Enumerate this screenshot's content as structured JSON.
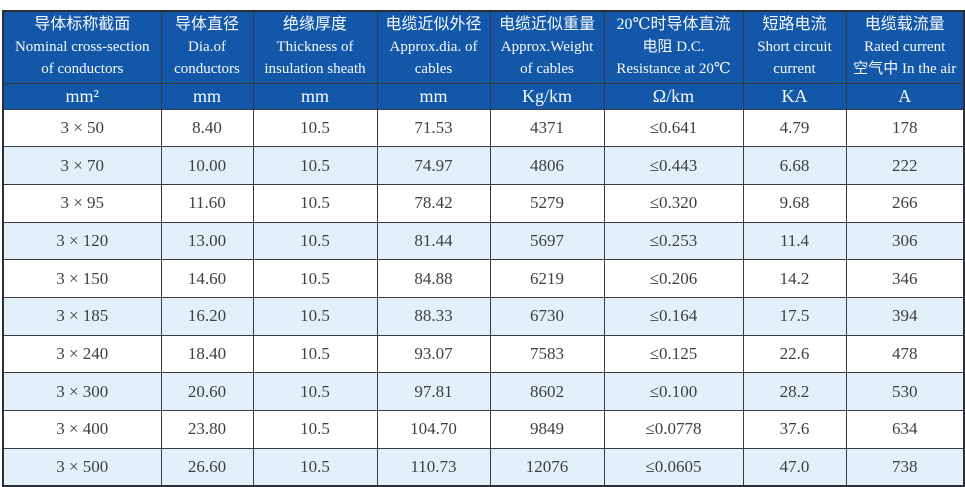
{
  "colors": {
    "header_bg": "#1357a9",
    "header_text": "#f6f9fd",
    "row_alt_bg": "#e2f0fa",
    "row_bg": "#ffffff",
    "border": "#3a3a44",
    "cell_text": "#3f3f3f"
  },
  "table": {
    "columns": [
      {
        "lines": [
          "导体标称截面",
          "Nominal cross-section",
          "of conductors"
        ],
        "unit": "mm²"
      },
      {
        "lines": [
          "导体直径",
          "Dia.of",
          "conductors"
        ],
        "unit": "mm"
      },
      {
        "lines": [
          "绝缘厚度",
          "Thickness of",
          "insulation sheath"
        ],
        "unit": "mm"
      },
      {
        "lines": [
          "电缆近似外径",
          "Approx.dia. of",
          "cables"
        ],
        "unit": "mm"
      },
      {
        "lines": [
          "电缆近似重量",
          "Approx.Weight",
          "of cables"
        ],
        "unit": "Kg/km"
      },
      {
        "lines": [
          "20℃时导体直流",
          "电阻 D.C.",
          "Resistance at 20℃"
        ],
        "unit": "Ω/km"
      },
      {
        "lines": [
          "短路电流",
          "Short circuit",
          "current"
        ],
        "unit": "KA"
      },
      {
        "lines": [
          "电缆载流量",
          "Rated current",
          "空气中 In the air"
        ],
        "unit": "A"
      }
    ],
    "rows": [
      {
        "cells": [
          "3 × 50",
          "8.40",
          "10.5",
          "71.53",
          "4371",
          "≤0.641",
          "4.79",
          "178"
        ]
      },
      {
        "cells": [
          "3 × 70",
          "10.00",
          "10.5",
          "74.97",
          "4806",
          "≤0.443",
          "6.68",
          "222"
        ]
      },
      {
        "cells": [
          "3 × 95",
          "11.60",
          "10.5",
          "78.42",
          "5279",
          "≤0.320",
          "9.68",
          "266"
        ]
      },
      {
        "cells": [
          "3 × 120",
          "13.00",
          "10.5",
          "81.44",
          "5697",
          "≤0.253",
          "11.4",
          "306"
        ]
      },
      {
        "cells": [
          "3 × 150",
          "14.60",
          "10.5",
          "84.88",
          "6219",
          "≤0.206",
          "14.2",
          "346"
        ]
      },
      {
        "cells": [
          "3 × 185",
          "16.20",
          "10.5",
          "88.33",
          "6730",
          "≤0.164",
          "17.5",
          "394"
        ]
      },
      {
        "cells": [
          "3 × 240",
          "18.40",
          "10.5",
          "93.07",
          "7583",
          "≤0.125",
          "22.6",
          "478"
        ]
      },
      {
        "cells": [
          "3 × 300",
          "20.60",
          "10.5",
          "97.81",
          "8602",
          "≤0.100",
          "28.2",
          "530"
        ]
      },
      {
        "cells": [
          "3 × 400",
          "23.80",
          "10.5",
          "104.70",
          "9849",
          "≤0.0778",
          "37.6",
          "634"
        ]
      },
      {
        "cells": [
          "3 × 500",
          "26.60",
          "10.5",
          "110.73",
          "12076",
          "≤0.0605",
          "47.0",
          "738"
        ]
      }
    ]
  }
}
